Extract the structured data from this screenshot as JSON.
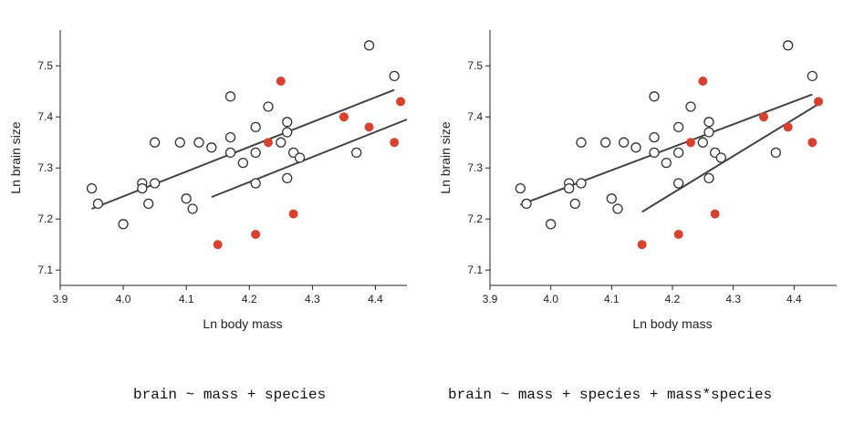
{
  "chart_data": [
    {
      "type": "scatter",
      "title": "",
      "xlabel": "Ln body mass",
      "ylabel": "Ln brain size",
      "xlim": [
        3.9,
        4.45
      ],
      "ylim": [
        7.07,
        7.57
      ],
      "xticks": [
        3.9,
        4.0,
        4.1,
        4.2,
        4.3,
        4.4
      ],
      "xtick_labels": [
        "3.9",
        "4.0",
        "4.1",
        "4.2",
        "4.3",
        "4.4"
      ],
      "yticks": [
        7.1,
        7.2,
        7.3,
        7.4,
        7.5
      ],
      "ytick_labels": [
        "7.1",
        "7.2",
        "7.3",
        "7.4",
        "7.5"
      ],
      "grid": false,
      "colors": {
        "open": "#333333",
        "filled": "#d9412f",
        "line": "#444444"
      },
      "series": [
        {
          "marker": "open",
          "points": [
            [
              3.95,
              7.26
            ],
            [
              3.96,
              7.23
            ],
            [
              4.0,
              7.19
            ],
            [
              4.03,
              7.27
            ],
            [
              4.03,
              7.26
            ],
            [
              4.04,
              7.23
            ],
            [
              4.05,
              7.27
            ],
            [
              4.05,
              7.35
            ],
            [
              4.09,
              7.35
            ],
            [
              4.1,
              7.24
            ],
            [
              4.11,
              7.22
            ],
            [
              4.12,
              7.35
            ],
            [
              4.14,
              7.34
            ],
            [
              4.17,
              7.44
            ],
            [
              4.17,
              7.36
            ],
            [
              4.17,
              7.33
            ],
            [
              4.19,
              7.31
            ],
            [
              4.21,
              7.38
            ],
            [
              4.21,
              7.33
            ],
            [
              4.21,
              7.27
            ],
            [
              4.23,
              7.42
            ],
            [
              4.25,
              7.35
            ],
            [
              4.26,
              7.39
            ],
            [
              4.26,
              7.37
            ],
            [
              4.26,
              7.28
            ],
            [
              4.27,
              7.33
            ],
            [
              4.28,
              7.32
            ],
            [
              4.37,
              7.33
            ],
            [
              4.39,
              7.54
            ],
            [
              4.43,
              7.48
            ]
          ]
        },
        {
          "marker": "filled",
          "points": [
            [
              4.15,
              7.15
            ],
            [
              4.21,
              7.17
            ],
            [
              4.23,
              7.35
            ],
            [
              4.25,
              7.47
            ],
            [
              4.27,
              7.21
            ],
            [
              4.35,
              7.4
            ],
            [
              4.39,
              7.38
            ],
            [
              4.43,
              7.35
            ],
            [
              4.44,
              7.43
            ]
          ]
        }
      ],
      "fit_lines": [
        {
          "x": [
            3.95,
            4.43
          ],
          "y": [
            7.22,
            7.453
          ]
        },
        {
          "x": [
            4.14,
            4.45
          ],
          "y": [
            7.243,
            7.395
          ]
        }
      ]
    },
    {
      "type": "scatter",
      "title": "",
      "xlabel": "Ln body mass",
      "ylabel": "Ln brain size",
      "xlim": [
        3.9,
        4.47
      ],
      "ylim": [
        7.07,
        7.57
      ],
      "xticks": [
        3.9,
        4.0,
        4.1,
        4.2,
        4.3,
        4.4
      ],
      "xtick_labels": [
        "3.9",
        "4.0",
        "4.1",
        "4.2",
        "4.3",
        "4.4"
      ],
      "yticks": [
        7.1,
        7.2,
        7.3,
        7.4,
        7.5
      ],
      "ytick_labels": [
        "7.1",
        "7.2",
        "7.3",
        "7.4",
        "7.5"
      ],
      "grid": false,
      "colors": {
        "open": "#333333",
        "filled": "#d9412f",
        "line": "#444444"
      },
      "series": [
        {
          "marker": "open",
          "points": [
            [
              3.95,
              7.26
            ],
            [
              3.96,
              7.23
            ],
            [
              4.0,
              7.19
            ],
            [
              4.03,
              7.27
            ],
            [
              4.03,
              7.26
            ],
            [
              4.04,
              7.23
            ],
            [
              4.05,
              7.27
            ],
            [
              4.05,
              7.35
            ],
            [
              4.09,
              7.35
            ],
            [
              4.1,
              7.24
            ],
            [
              4.11,
              7.22
            ],
            [
              4.12,
              7.35
            ],
            [
              4.14,
              7.34
            ],
            [
              4.17,
              7.44
            ],
            [
              4.17,
              7.36
            ],
            [
              4.17,
              7.33
            ],
            [
              4.19,
              7.31
            ],
            [
              4.21,
              7.38
            ],
            [
              4.21,
              7.33
            ],
            [
              4.21,
              7.27
            ],
            [
              4.23,
              7.42
            ],
            [
              4.25,
              7.35
            ],
            [
              4.26,
              7.39
            ],
            [
              4.26,
              7.37
            ],
            [
              4.26,
              7.28
            ],
            [
              4.27,
              7.33
            ],
            [
              4.28,
              7.32
            ],
            [
              4.37,
              7.33
            ],
            [
              4.39,
              7.54
            ],
            [
              4.43,
              7.48
            ]
          ]
        },
        {
          "marker": "filled",
          "points": [
            [
              4.15,
              7.15
            ],
            [
              4.21,
              7.17
            ],
            [
              4.23,
              7.35
            ],
            [
              4.25,
              7.47
            ],
            [
              4.27,
              7.21
            ],
            [
              4.35,
              7.4
            ],
            [
              4.39,
              7.38
            ],
            [
              4.43,
              7.35
            ],
            [
              4.44,
              7.43
            ]
          ]
        }
      ],
      "fit_lines": [
        {
          "x": [
            3.95,
            4.43
          ],
          "y": [
            7.228,
            7.444
          ]
        },
        {
          "x": [
            4.15,
            4.44
          ],
          "y": [
            7.214,
            7.425
          ]
        }
      ]
    }
  ],
  "captions": [
    "brain ~ mass + species",
    "brain ~ mass + species + mass*species"
  ]
}
